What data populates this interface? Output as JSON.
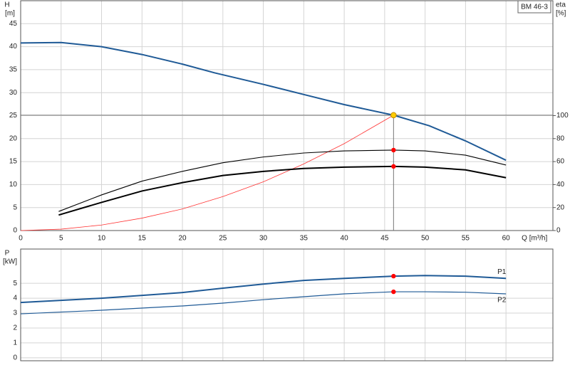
{
  "chart_data": [
    {
      "type": "line",
      "title": "BM 46-3",
      "ylabel": "H",
      "yunit": "[m]",
      "y2label": "eta",
      "y2unit": "[%]",
      "xlabel": "Q [m³/h]",
      "xlim": [
        0,
        65.8
      ],
      "xticks": [
        0,
        5,
        10,
        15,
        20,
        25,
        30,
        35,
        40,
        45,
        50,
        55,
        60
      ],
      "ylim": [
        0,
        50
      ],
      "yticks": [
        0,
        5,
        10,
        15,
        20,
        25,
        30,
        35,
        40,
        45
      ],
      "y2lim": [
        0,
        200
      ],
      "y2ticks": [
        0,
        20,
        40,
        60,
        80,
        100
      ],
      "grid": true,
      "series": [
        {
          "color": "#1f5a96",
          "line_width": 2,
          "x": [
            0,
            5,
            10,
            15,
            20,
            24,
            30,
            35,
            40,
            46.1,
            50.5,
            55,
            60
          ],
          "values": [
            40.8,
            40.9,
            40,
            38.3,
            36.2,
            34.3,
            31.8,
            29.6,
            27.4,
            25.1,
            22.8,
            19.5,
            15.3
          ]
        },
        {
          "color": "#ff3333",
          "line_width": 0.8,
          "x": [
            0,
            5,
            10,
            15,
            20,
            25,
            30,
            35,
            40,
            46.1
          ],
          "values": [
            0,
            0.3,
            1.2,
            2.7,
            4.7,
            7.4,
            10.6,
            14.5,
            18.9,
            25.1
          ]
        },
        {
          "color": "#000000",
          "line_width": 1.1,
          "axis": "y2",
          "x": [
            4.7,
            10,
            15,
            20,
            25,
            30,
            35,
            40,
            46.1,
            50,
            55,
            60
          ],
          "values": [
            16.6,
            31,
            43,
            51.5,
            59,
            64,
            67.5,
            69.3,
            70,
            69.3,
            65.6,
            57
          ]
        },
        {
          "color": "#000000",
          "line_width": 2,
          "axis": "y2",
          "x": [
            4.7,
            10,
            15,
            20,
            25,
            30,
            35,
            40,
            46.1,
            50,
            55,
            60
          ],
          "values": [
            13.5,
            24.5,
            34.4,
            41.7,
            47.9,
            51.5,
            54,
            55.2,
            55.8,
            55.2,
            52.8,
            46
          ]
        }
      ],
      "duty_point": {
        "x": 46.1,
        "y": 25.1,
        "color": "#ffcc00"
      },
      "points": [
        {
          "x": 46.1,
          "y": 70,
          "axis": "y2",
          "color": "#ff0000"
        },
        {
          "x": 46.1,
          "y": 55.8,
          "axis": "y2",
          "color": "#ff0000"
        }
      ]
    },
    {
      "type": "line",
      "ylabel": "P",
      "yunit": "[kW]",
      "xlim": [
        0,
        65.8
      ],
      "xticks": [
        0,
        5,
        10,
        15,
        20,
        25,
        30,
        35,
        40,
        45,
        50,
        55,
        60
      ],
      "ylim": [
        -0.2,
        7.3
      ],
      "yticks": [
        0,
        1,
        2,
        3,
        4,
        5
      ],
      "grid": true,
      "series": [
        {
          "name": "P1",
          "color": "#1f5a96",
          "line_width": 2,
          "x": [
            0,
            10,
            20,
            25,
            30,
            35,
            40,
            46.1,
            50,
            55,
            60
          ],
          "values": [
            3.71,
            4.0,
            4.38,
            4.67,
            4.95,
            5.19,
            5.33,
            5.48,
            5.52,
            5.48,
            5.33
          ]
        },
        {
          "name": "P2",
          "color": "#1f5a96",
          "line_width": 1.2,
          "x": [
            0,
            10,
            20,
            25,
            30,
            35,
            40,
            46.1,
            50,
            55,
            60
          ],
          "values": [
            2.95,
            3.19,
            3.48,
            3.67,
            3.9,
            4.1,
            4.29,
            4.43,
            4.43,
            4.4,
            4.29
          ]
        }
      ],
      "points": [
        {
          "x": 46.1,
          "y": 5.48,
          "color": "#ff0000"
        },
        {
          "x": 46.1,
          "y": 4.43,
          "color": "#ff0000"
        }
      ]
    }
  ]
}
